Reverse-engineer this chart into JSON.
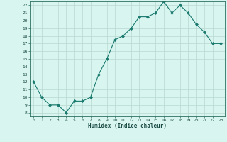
{
  "x": [
    0,
    1,
    2,
    3,
    4,
    5,
    6,
    7,
    8,
    9,
    10,
    11,
    12,
    13,
    14,
    15,
    16,
    17,
    18,
    19,
    20,
    21,
    22,
    23
  ],
  "y": [
    12,
    10,
    9,
    9,
    8,
    9.5,
    9.5,
    10,
    13,
    15,
    17.5,
    18,
    19,
    20.5,
    20.5,
    21,
    22.5,
    21,
    22,
    21,
    19.5,
    18.5,
    17,
    17
  ],
  "xlabel": "Humidex (Indice chaleur)",
  "xlim": [
    -0.5,
    23.5
  ],
  "ylim": [
    7.5,
    22.5
  ],
  "yticks": [
    8,
    9,
    10,
    11,
    12,
    13,
    14,
    15,
    16,
    17,
    18,
    19,
    20,
    21,
    22
  ],
  "xticks": [
    0,
    1,
    2,
    3,
    4,
    5,
    6,
    7,
    8,
    9,
    10,
    11,
    12,
    13,
    14,
    15,
    16,
    17,
    18,
    19,
    20,
    21,
    22,
    23
  ],
  "line_color": "#1a7a6e",
  "marker_color": "#1a7a6e",
  "bg_color": "#d8f5f0",
  "grid_color": "#b8d8d0",
  "axis_color": "#2a6e60",
  "label_color": "#1a4a44"
}
